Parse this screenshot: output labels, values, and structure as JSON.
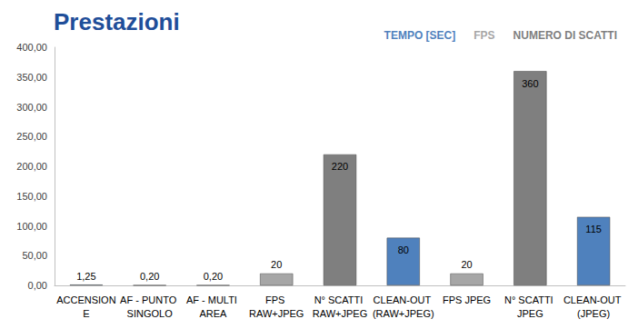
{
  "chart_data": {
    "type": "bar",
    "title": "Prestazioni",
    "categories": [
      "ACCENSIONE",
      "AF - PUNTO SINGOLO",
      "AF - MULTI AREA",
      "FPS RAW+JPEG",
      "N° SCATTI RAW+JPEG",
      "CLEAN-OUT (RAW+JPEG)",
      "FPS JPEG",
      "N° SCATTI JPEG",
      "CLEAN-OUT (JPEG)"
    ],
    "series": [
      {
        "name": "TEMPO [SEC]",
        "color": "#4f81bd",
        "values": [
          1.25,
          0.2,
          0.2,
          null,
          null,
          80,
          null,
          null,
          115
        ],
        "value_labels": [
          "1,25",
          "0,20",
          "0,20",
          null,
          null,
          "80",
          null,
          null,
          "115"
        ]
      },
      {
        "name": "FPS",
        "color": "#a6a6a6",
        "values": [
          null,
          null,
          null,
          20,
          null,
          null,
          20,
          null,
          null
        ],
        "value_labels": [
          null,
          null,
          null,
          "20",
          null,
          null,
          "20",
          null,
          null
        ]
      },
      {
        "name": "NUMERO DI SCATTI",
        "color": "#7f7f7f",
        "values": [
          null,
          null,
          null,
          null,
          220,
          null,
          null,
          360,
          null
        ],
        "value_labels": [
          null,
          null,
          null,
          null,
          "220",
          null,
          null,
          "360",
          null
        ]
      }
    ],
    "ylim": [
      0,
      400
    ],
    "yticks": [
      {
        "value": 0,
        "label": "0,00"
      },
      {
        "value": 50,
        "label": "50,00"
      },
      {
        "value": 100,
        "label": "100,00"
      },
      {
        "value": 150,
        "label": "150,00"
      },
      {
        "value": 200,
        "label": "200,00"
      },
      {
        "value": 250,
        "label": "250,00"
      },
      {
        "value": 300,
        "label": "300,00"
      },
      {
        "value": 350,
        "label": "350,00"
      },
      {
        "value": 400,
        "label": "400,00"
      }
    ],
    "grid": false,
    "legend": "top-right",
    "data_labels": true
  }
}
